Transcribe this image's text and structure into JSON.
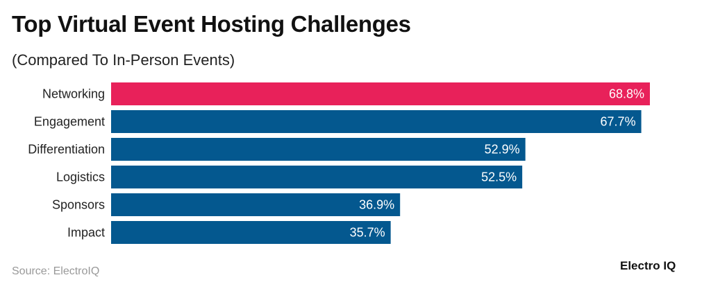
{
  "title": "Top Virtual Event Hosting Challenges",
  "subtitle": "(Compared To In-Person Events)",
  "source": "Source: ElectroIQ",
  "logo": "Electro IQ",
  "chart_data": {
    "type": "bar",
    "orientation": "horizontal",
    "title": "Top Virtual Event Hosting Challenges",
    "subtitle": "(Compared To In-Person Events)",
    "categories": [
      "Networking",
      "Engagement",
      "Differentiation",
      "Logistics",
      "Sponsors",
      "Impact"
    ],
    "values": [
      68.8,
      67.7,
      52.9,
      52.5,
      36.9,
      35.7
    ],
    "value_labels": [
      "68.8%",
      "67.7%",
      "52.9%",
      "52.5%",
      "36.9%",
      "35.7%"
    ],
    "unit": "%",
    "xlim": [
      0,
      68.8
    ],
    "grid": false,
    "colors": {
      "highlight": "#E8215A",
      "default": "#04588F"
    },
    "highlight_index": 0
  }
}
